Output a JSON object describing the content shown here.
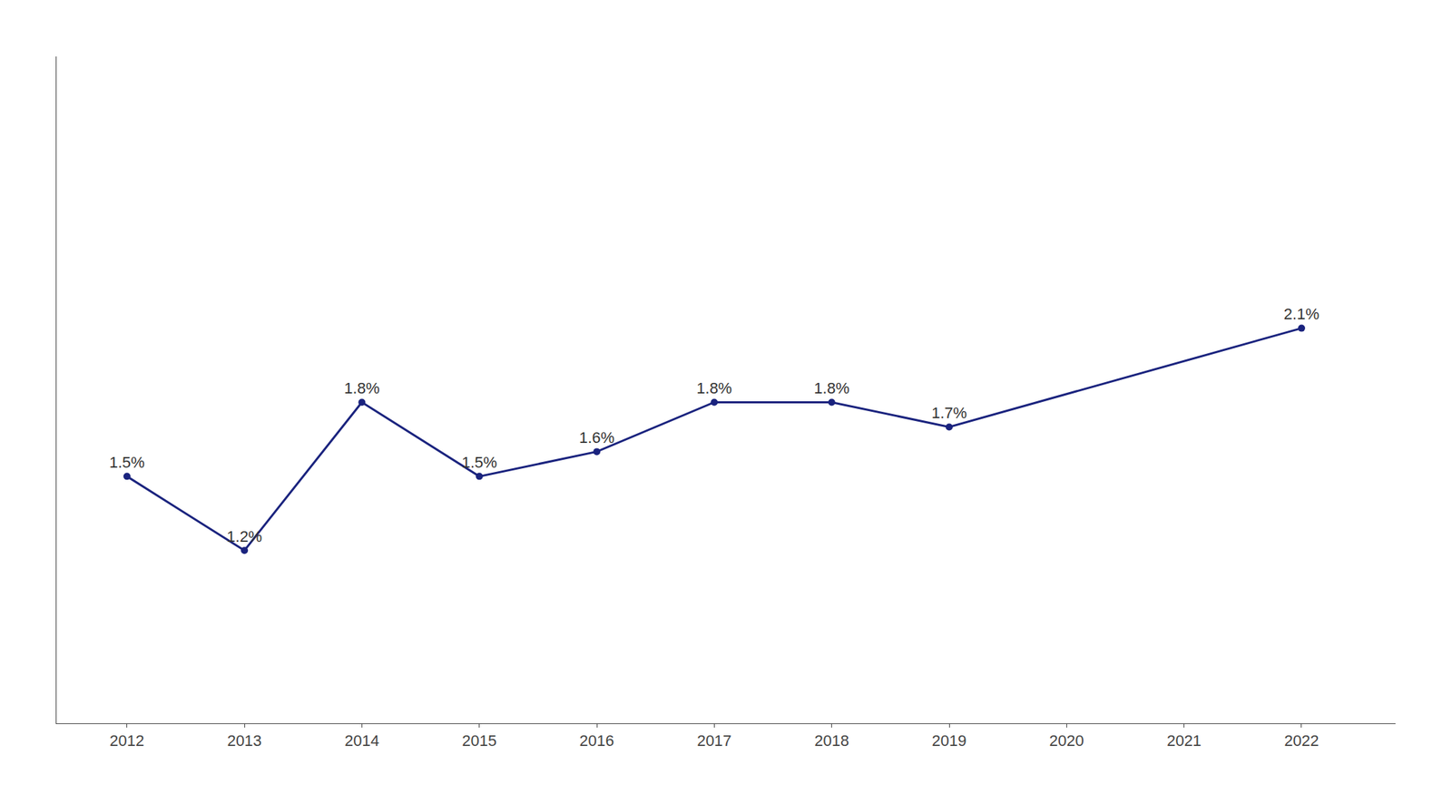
{
  "chart_data": {
    "type": "line",
    "x": [
      2012,
      2013,
      2014,
      2015,
      2016,
      2017,
      2018,
      2019,
      2022
    ],
    "values": [
      1.5,
      1.2,
      1.8,
      1.5,
      1.6,
      1.8,
      1.8,
      1.7,
      2.1
    ],
    "value_labels": [
      "1.5%",
      "1.2%",
      "1.8%",
      "1.5%",
      "1.6%",
      "1.8%",
      "1.8%",
      "1.7%",
      "2.1%"
    ],
    "data_labels": true,
    "color": "#1a237e",
    "marker": "circle",
    "xlim": [
      2011.4,
      2022.8
    ],
    "xticks": [
      2012,
      2013,
      2014,
      2015,
      2016,
      2017,
      2018,
      2019,
      2020,
      2021,
      2022
    ],
    "ylim": [
      0.5,
      3.2
    ],
    "grid": false,
    "tick_labels": "x"
  }
}
